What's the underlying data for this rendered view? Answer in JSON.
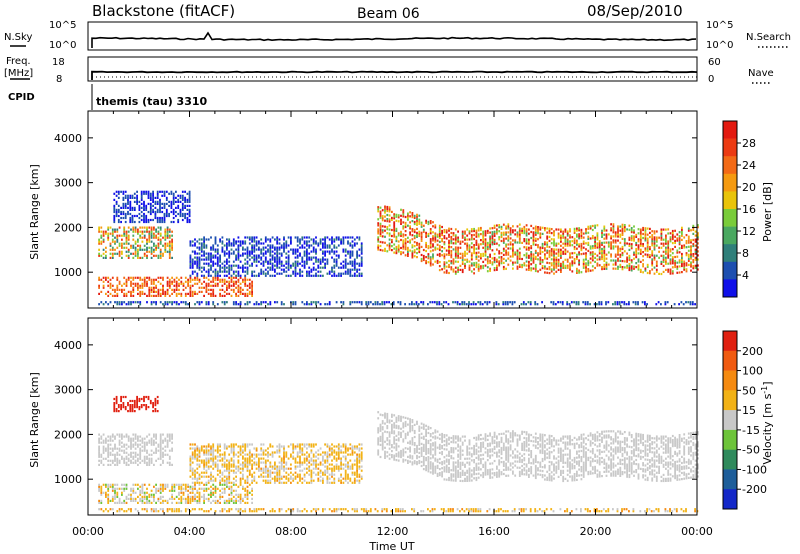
{
  "header": {
    "station": "Blackstone (fitACF)",
    "beam": "Beam 06",
    "date": "08/Sep/2010"
  },
  "top_panels": {
    "nsky_label": "N.Sky",
    "nsky_ticks": [
      "10^5",
      "10^0"
    ],
    "nsearch_label": "N.Search",
    "nsearch_ticks": [
      "10^5",
      "10^0"
    ],
    "freq_label": "Freq.",
    "freq_unit": "[MHz]",
    "freq_ticks": [
      "18",
      "8"
    ],
    "nave_label": "Nave",
    "nave_ticks": [
      "60",
      "0"
    ],
    "cpid_label": "CPID",
    "cpid_value": "themis (tau) 3310"
  },
  "chart_data": [
    {
      "type": "heatmap",
      "name": "power",
      "ylabel": "Slant Range [km]",
      "ylim": [
        200,
        4600
      ],
      "yticks": [
        1000,
        2000,
        3000,
        4000
      ],
      "xlim": [
        0,
        24
      ],
      "colorbar_label": "Power [dB]",
      "colorbar_ticks": [
        "4",
        "8",
        "12",
        "16",
        "20",
        "24",
        "28"
      ],
      "colorbar_colors": [
        "#1010e8",
        "#1d4fb0",
        "#2f7f7a",
        "#4aa860",
        "#7acc3a",
        "#e9c40a",
        "#f59a10",
        "#f36a16",
        "#ec3a12",
        "#e31a10"
      ],
      "bands": [
        {
          "t0": 0.4,
          "t1": 3.3,
          "r0": 1300,
          "r1": 2000,
          "level": 0.55,
          "spread": 0.35
        },
        {
          "t0": 0.4,
          "t1": 6.5,
          "r0": 450,
          "r1": 900,
          "level": 0.8,
          "spread": 0.2
        },
        {
          "t0": 1.0,
          "t1": 4.0,
          "r0": 2100,
          "r1": 2800,
          "level": 0.1,
          "spread": 0.1
        },
        {
          "t0": 4.0,
          "t1": 10.8,
          "r0": 900,
          "r1": 1800,
          "level": 0.12,
          "spread": 0.12
        },
        {
          "t0": 11.4,
          "t1": 24,
          "r0": 1000,
          "r1": 2000,
          "level": 0.7,
          "spread": 0.35
        },
        {
          "t0": 0.4,
          "t1": 24,
          "r0": 220,
          "r1": 320,
          "level": 0.15,
          "spread": 0.1
        }
      ]
    },
    {
      "type": "heatmap",
      "name": "velocity",
      "ylabel": "Slant Range [km]",
      "ylim": [
        200,
        4600
      ],
      "yticks": [
        1000,
        2000,
        3000,
        4000
      ],
      "xlim": [
        0,
        24
      ],
      "xticks": [
        "00:00",
        "04:00",
        "08:00",
        "12:00",
        "16:00",
        "20:00",
        "00:00"
      ],
      "xlabel": "Time UT",
      "colorbar_label": "Velocity [m s^-1]",
      "colorbar_ticks": [
        "200",
        "100",
        "50",
        "15",
        "-15",
        "-50",
        "-100",
        "-200"
      ],
      "colorbar_colors": [
        "#1428c8",
        "#1e5e9a",
        "#2f8a5c",
        "#6dc43a",
        "#c8c8c8",
        "#f2b216",
        "#f58a10",
        "#f05a10",
        "#e02010"
      ],
      "bands": [
        {
          "t0": 0.4,
          "t1": 3.3,
          "r0": 1300,
          "r1": 2000,
          "level": 0.5,
          "spread": 0.05
        },
        {
          "t0": 0.4,
          "t1": 6.5,
          "r0": 450,
          "r1": 900,
          "level": 0.55,
          "spread": 0.15
        },
        {
          "t0": 1.0,
          "t1": 2.8,
          "r0": 2500,
          "r1": 2850,
          "level": 0.95,
          "spread": 0.05
        },
        {
          "t0": 4.0,
          "t1": 10.8,
          "r0": 900,
          "r1": 1800,
          "level": 0.58,
          "spread": 0.1
        },
        {
          "t0": 11.4,
          "t1": 24,
          "r0": 1000,
          "r1": 2000,
          "level": 0.5,
          "spread": 0.05
        },
        {
          "t0": 0.4,
          "t1": 24,
          "r0": 220,
          "r1": 320,
          "level": 0.6,
          "spread": 0.1
        }
      ]
    }
  ]
}
